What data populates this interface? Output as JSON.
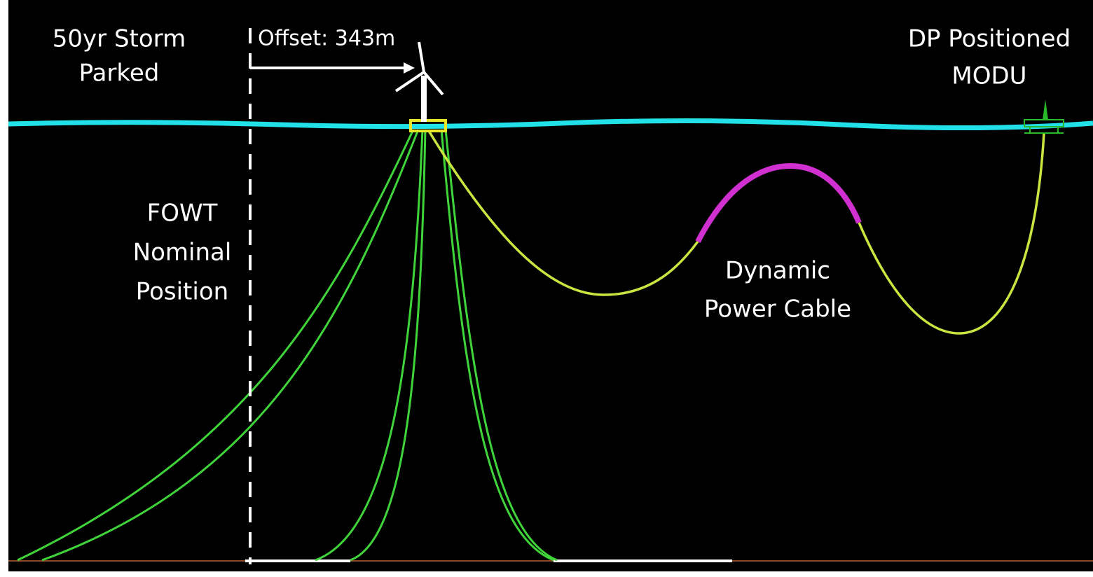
{
  "labels": {
    "storm": [
      "50yr Storm",
      "Parked"
    ],
    "offset": "Offset: 343m",
    "modu": [
      "DP Positioned",
      "MODU"
    ],
    "nominal": [
      "FOWT",
      "Nominal",
      "Position"
    ],
    "cable": [
      "Dynamic",
      "Power Cable"
    ]
  }
}
